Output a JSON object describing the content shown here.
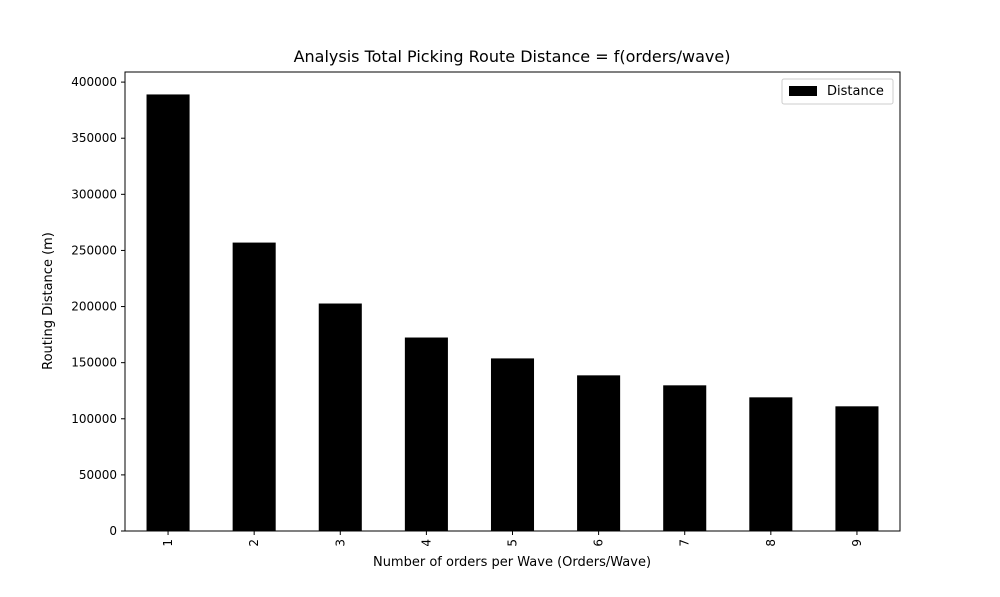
{
  "chart_data": {
    "type": "bar",
    "title": "Analysis Total Picking Route Distance = f(orders/wave)",
    "xlabel": "Number of orders per Wave (Orders/Wave)",
    "ylabel": "Routing Distance (m)",
    "categories": [
      "1",
      "2",
      "3",
      "4",
      "5",
      "6",
      "7",
      "8",
      "9"
    ],
    "series": [
      {
        "name": "Distance",
        "color": "#000000",
        "values": [
          389000,
          257000,
          202700,
          172400,
          153800,
          138700,
          129800,
          119100,
          111100
        ]
      }
    ],
    "yticks": [
      "0",
      "50000",
      "100000",
      "150000",
      "200000",
      "250000",
      "300000",
      "350000",
      "400000"
    ],
    "ylim": [
      0,
      409000
    ],
    "grid": false,
    "legend": "top-right",
    "xtick_rotation": "vertical"
  }
}
